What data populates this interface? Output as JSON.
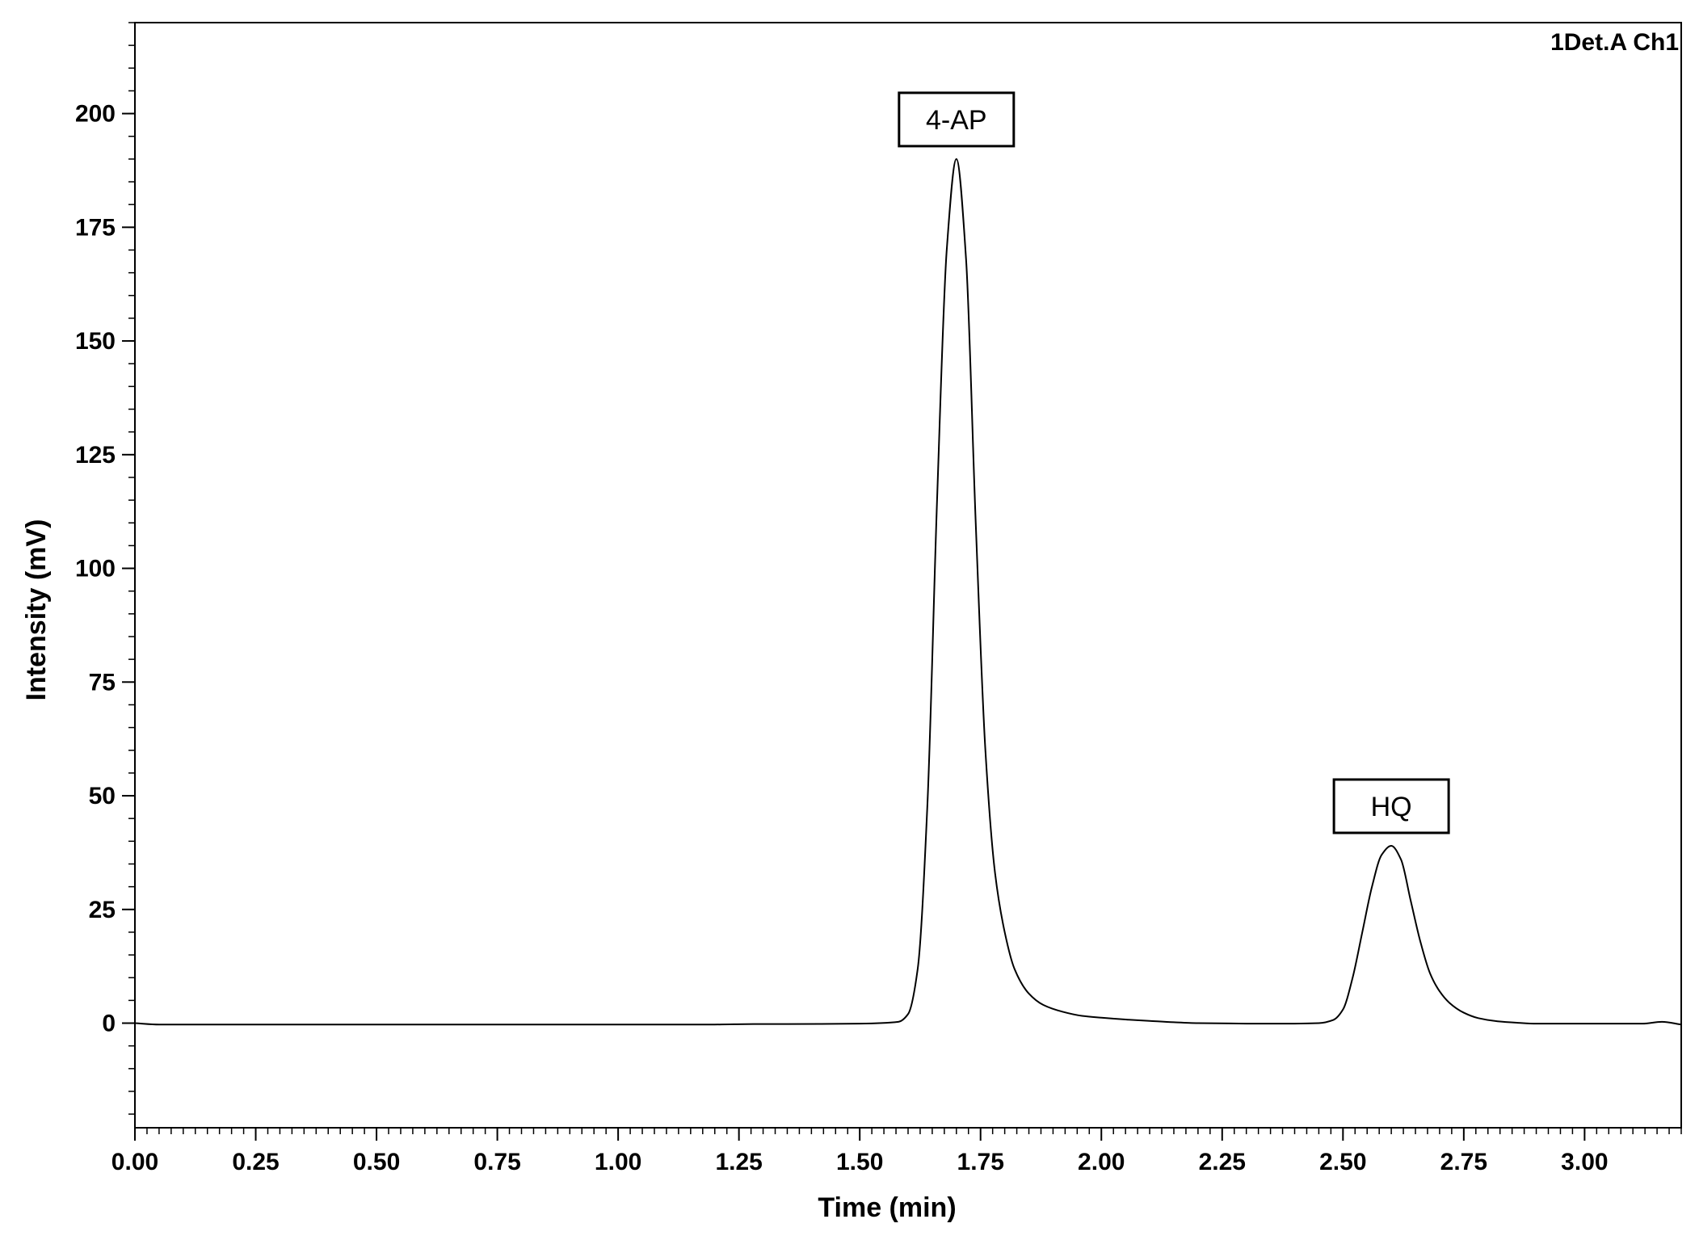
{
  "chart_data": {
    "type": "line",
    "channel_label": "1Det.A Ch1",
    "xlabel": "Time (min)",
    "ylabel": "Intensity (mV)",
    "xlim": [
      0,
      3.2
    ],
    "ylim": [
      -23,
      220
    ],
    "x_ticks": [
      0,
      0.25,
      0.5,
      0.75,
      1.0,
      1.25,
      1.5,
      1.75,
      2.0,
      2.25,
      2.5,
      2.75,
      3.0
    ],
    "x_tick_labels": [
      "0.00",
      "0.25",
      "0.50",
      "0.75",
      "1.00",
      "1.25",
      "1.50",
      "1.75",
      "2.00",
      "2.25",
      "2.50",
      "2.75",
      "3.00"
    ],
    "y_ticks": [
      0,
      25,
      50,
      75,
      100,
      125,
      150,
      175,
      200
    ],
    "y_tick_labels": [
      "0",
      "25",
      "50",
      "75",
      "100",
      "125",
      "150",
      "175",
      "200"
    ],
    "grid": false,
    "series": [
      {
        "x": [
          0,
          0.05,
          0.2,
          0.5,
          1.0,
          1.2,
          1.28,
          1.35,
          1.5,
          1.58,
          1.6,
          1.62,
          1.64,
          1.66,
          1.68,
          1.7,
          1.72,
          1.74,
          1.76,
          1.78,
          1.8,
          1.82,
          1.85,
          1.88,
          1.92,
          1.96,
          2.0,
          2.05,
          2.1,
          2.15,
          2.2,
          2.3,
          2.4,
          2.45,
          2.48,
          2.5,
          2.52,
          2.54,
          2.56,
          2.58,
          2.6,
          2.62,
          2.64,
          2.66,
          2.68,
          2.7,
          2.72,
          2.75,
          2.78,
          2.82,
          2.86,
          2.9,
          3.0,
          3.07,
          3.12,
          3.16,
          3.2
        ],
        "y": [
          0,
          -0.3,
          -0.3,
          -0.3,
          -0.3,
          -0.3,
          -0.2,
          -0.2,
          -0.1,
          0.3,
          2,
          12,
          48,
          115,
          170,
          190,
          168,
          110,
          60,
          33,
          20,
          12,
          6.5,
          4,
          2.5,
          1.6,
          1.2,
          0.8,
          0.5,
          0.2,
          0,
          -0.1,
          -0.1,
          0,
          0.7,
          3,
          10,
          20,
          30,
          37,
          39,
          36,
          27,
          18,
          11,
          7,
          4.5,
          2.3,
          1.1,
          0.4,
          0.1,
          -0.1,
          -0.1,
          -0.1,
          -0.1,
          0.3,
          -0.3
        ]
      }
    ],
    "annotations": [
      {
        "text": "4-AP",
        "x": 1.7,
        "y": 190
      },
      {
        "text": "HQ",
        "x": 2.6,
        "y": 39
      }
    ]
  }
}
